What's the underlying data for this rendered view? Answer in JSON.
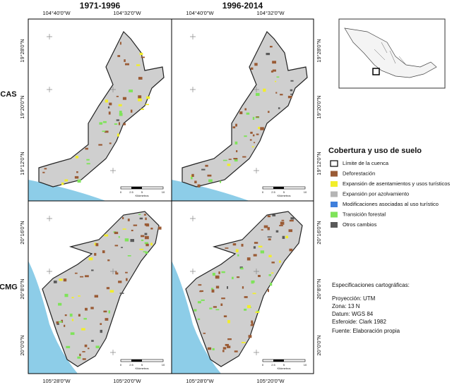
{
  "columns": [
    "1971-1996",
    "1996-2014"
  ],
  "rows": [
    {
      "label": "CAS",
      "lon": [
        "104°40'0\"W",
        "104°32'0\"W"
      ],
      "lat": [
        "19°28'0\"N",
        "19°20'0\"N",
        "19°12'0\"N"
      ]
    },
    {
      "label": "CMG",
      "lon": [
        "105°28'0\"W",
        "105°20'0\"W"
      ],
      "lat": [
        "20°16'0\"N",
        "20°8'0\"N",
        "20°0'0\"N"
      ]
    }
  ],
  "scale": {
    "ticks": [
      "0",
      "2.5",
      "5",
      "10"
    ],
    "unit": "Kilómetros"
  },
  "legend": {
    "title": "Cobertura y uso de suelo",
    "items": [
      {
        "label": "Límite de la cuenca",
        "color": "#ffffff"
      },
      {
        "label": "Deforestación",
        "color": "#9a5b35"
      },
      {
        "label": "Expansión de asentamientos y usos turísticos",
        "color": "#f2ee2a"
      },
      {
        "label": "Expansión por azolvamiento",
        "color": "#b5b5b5"
      },
      {
        "label": "Modificaciones asociadas al uso turístico",
        "color": "#3f7fdc"
      },
      {
        "label": "Transición forestal",
        "color": "#7fe35a"
      },
      {
        "label": "Otros cambios",
        "color": "#5a5a5a"
      }
    ]
  },
  "specs": {
    "title": "Especificaciones cartográficas:",
    "lines": [
      "Proyección: UTM",
      "Zona: 13 N",
      "Datum: WGS 84",
      "Esferoide: Clark 1982"
    ],
    "source": "Fuente: Elaboración propia"
  }
}
